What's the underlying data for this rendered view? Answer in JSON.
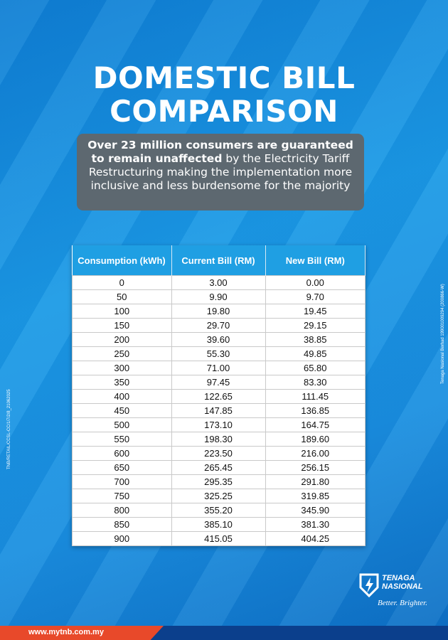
{
  "title": {
    "lines": [
      "DOMESTIC BILL",
      "COMPARISON"
    ]
  },
  "subtitle": {
    "bold": "Over 23 million consumers are guaranteed to remain unaffected",
    "rest": " by the Electricity Tariff Restructuring making the implementation more inclusive and less burdensome for the majority"
  },
  "table": {
    "headers": [
      "Consumption (kWh)",
      "Current Bill  (RM)",
      "New Bill (RM)"
    ],
    "rows": [
      [
        "0",
        "3.00",
        "0.00"
      ],
      [
        "50",
        "9.90",
        "9.70"
      ],
      [
        "100",
        "19.80",
        "19.45"
      ],
      [
        "150",
        "29.70",
        "29.15"
      ],
      [
        "200",
        "39.60",
        "38.85"
      ],
      [
        "250",
        "55.30",
        "49.85"
      ],
      [
        "300",
        "71.00",
        "65.80"
      ],
      [
        "350",
        "97.45",
        "83.30"
      ],
      [
        "400",
        "122.65",
        "111.45"
      ],
      [
        "450",
        "147.85",
        "136.85"
      ],
      [
        "500",
        "173.10",
        "164.75"
      ],
      [
        "550",
        "198.30",
        "189.60"
      ],
      [
        "600",
        "223.50",
        "216.00"
      ],
      [
        "650",
        "265.45",
        "256.15"
      ],
      [
        "700",
        "295.35",
        "291.80"
      ],
      [
        "750",
        "325.25",
        "319.85"
      ],
      [
        "800",
        "355.20",
        "345.90"
      ],
      [
        "850",
        "385.10",
        "381.30"
      ],
      [
        "900",
        "415.05",
        "404.25"
      ]
    ]
  },
  "side_left": "TNB/RETAIL/CCSL-CC/1/7/2/8_21062025",
  "side_right": "Tenaga Nasional Berhad 199001009294 (200866-W)",
  "logo": {
    "line1": "TENAGA",
    "line2": "NASIONAL",
    "tagline": "Better. Brighter."
  },
  "footer": {
    "url": "www.mytnb.com.my"
  }
}
